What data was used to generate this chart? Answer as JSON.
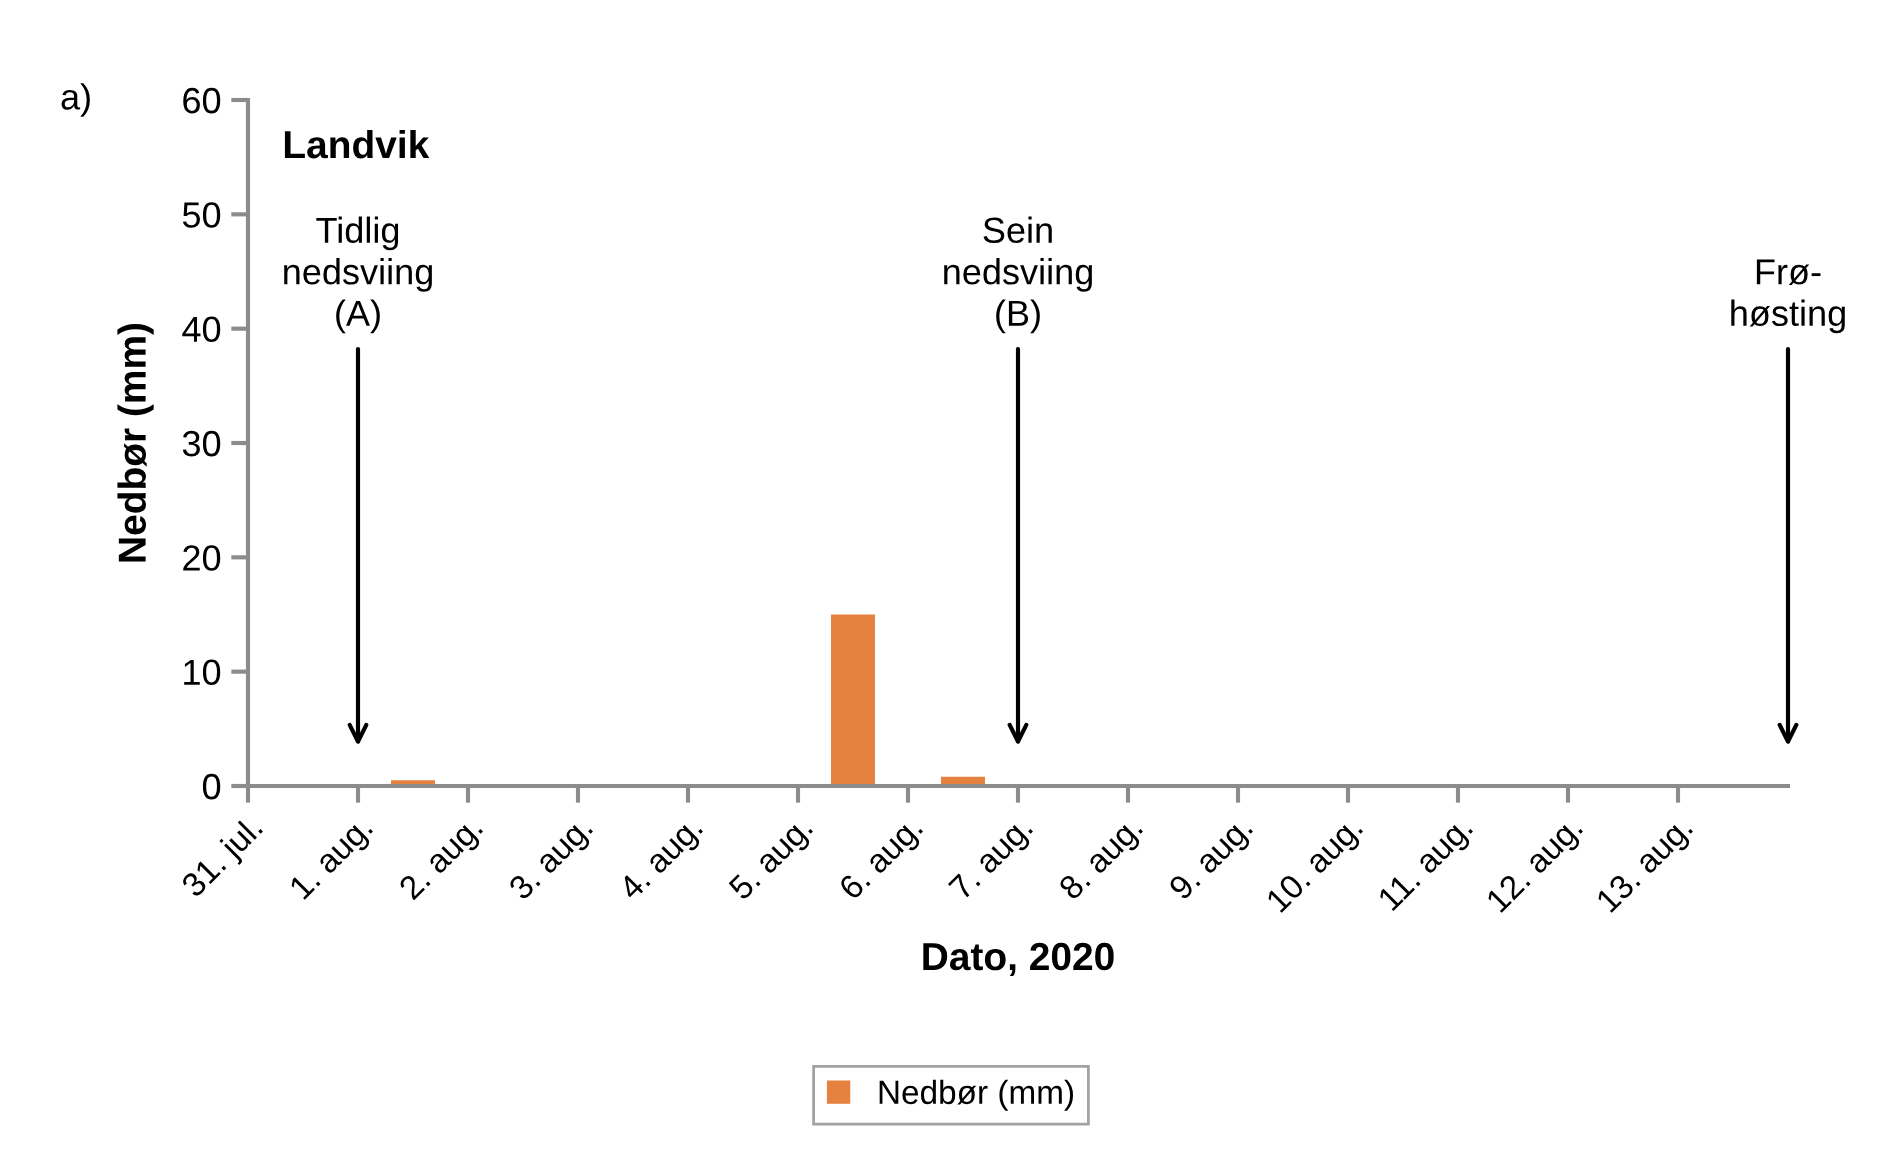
{
  "chart_data": {
    "type": "bar",
    "title": "Landvik",
    "xlabel": "Dato, 2020",
    "ylabel": "Nedbør (mm)",
    "categories": [
      "31. jul.",
      "1. aug.",
      "2. aug.",
      "3. aug.",
      "4. aug.",
      "5. aug.",
      "6. aug.",
      "7. aug.",
      "8. aug.",
      "9. aug.",
      "10. aug.",
      "11. aug.",
      "12. aug.",
      "13. aug."
    ],
    "series": [
      {
        "name": "Nedbør (mm)",
        "color": "#e6823f",
        "values": [
          0,
          0.5,
          0,
          0,
          0,
          15,
          0.8,
          0,
          0,
          0,
          0,
          0,
          0,
          0
        ]
      }
    ],
    "ylim": [
      0,
      60
    ],
    "yticks": [
      0,
      10,
      20,
      30,
      40,
      50,
      60
    ],
    "grid": false,
    "legend": "bottom",
    "annotations": [
      "a)",
      "Tidlig\nnedsviing\n(A)",
      "Sein\nnedsviing\n(B)",
      "Frø-\nhøsting"
    ]
  }
}
